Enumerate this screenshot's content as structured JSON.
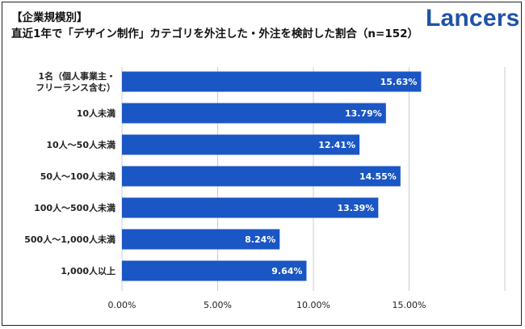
{
  "header": {
    "title_line1": "【企業規模別】",
    "title_line2": "直近1年で「デザイン制作」カテゴリを外注した・外注を検討した割合（n=152）",
    "logo_text": "Lancers"
  },
  "chart_data": {
    "type": "bar",
    "orientation": "horizontal",
    "title": "直近1年で「デザイン制作」カテゴリを外注した・外注を検討した割合（n=152）",
    "categories": [
      [
        "1名（個人事業主・",
        "フリーランス含む）"
      ],
      [
        "10人未満"
      ],
      [
        "10人～50人未満"
      ],
      [
        "50人～100人未満"
      ],
      [
        "100人～500人未満"
      ],
      [
        "500人～1,000人未満"
      ],
      [
        "1,000人以上"
      ]
    ],
    "values": [
      15.63,
      13.79,
      12.41,
      14.55,
      13.39,
      8.24,
      9.64
    ],
    "value_labels": [
      "15.63%",
      "13.79%",
      "12.41%",
      "14.55%",
      "13.39%",
      "8.24%",
      "9.64%"
    ],
    "xlim": [
      0,
      20
    ],
    "x_ticks": [
      0,
      5,
      10,
      15,
      20
    ],
    "x_tick_labels": [
      "0.00%",
      "5.00%",
      "10.00%",
      "15.00%",
      ""
    ],
    "grid": "vertical",
    "bar_color": "#1a56c4",
    "grid_color": "#cccccc"
  }
}
